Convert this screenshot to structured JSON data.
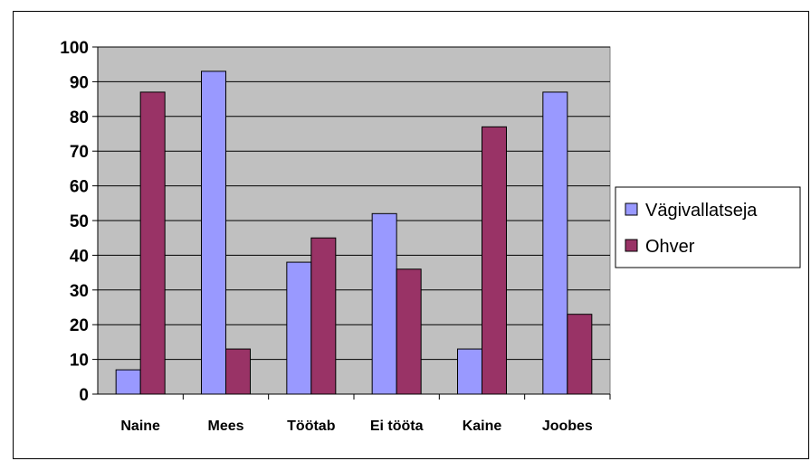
{
  "chart_data": {
    "type": "bar",
    "categories": [
      "Naine",
      "Mees",
      "Töötab",
      "Ei tööta",
      "Kaine",
      "Joobes"
    ],
    "series": [
      {
        "name": "Vägivallatseja",
        "color": "#9999ff",
        "values": [
          7,
          93,
          38,
          52,
          13,
          87
        ]
      },
      {
        "name": "Ohver",
        "color": "#993366",
        "values": [
          87,
          13,
          45,
          36,
          77,
          23
        ]
      }
    ],
    "ylim": [
      0,
      100
    ],
    "yticks": [
      0,
      10,
      20,
      30,
      40,
      50,
      60,
      70,
      80,
      90,
      100
    ],
    "grid": true,
    "plot_background": "#c0c0c0",
    "legend": "right",
    "title": "",
    "xlabel": "",
    "ylabel": ""
  }
}
